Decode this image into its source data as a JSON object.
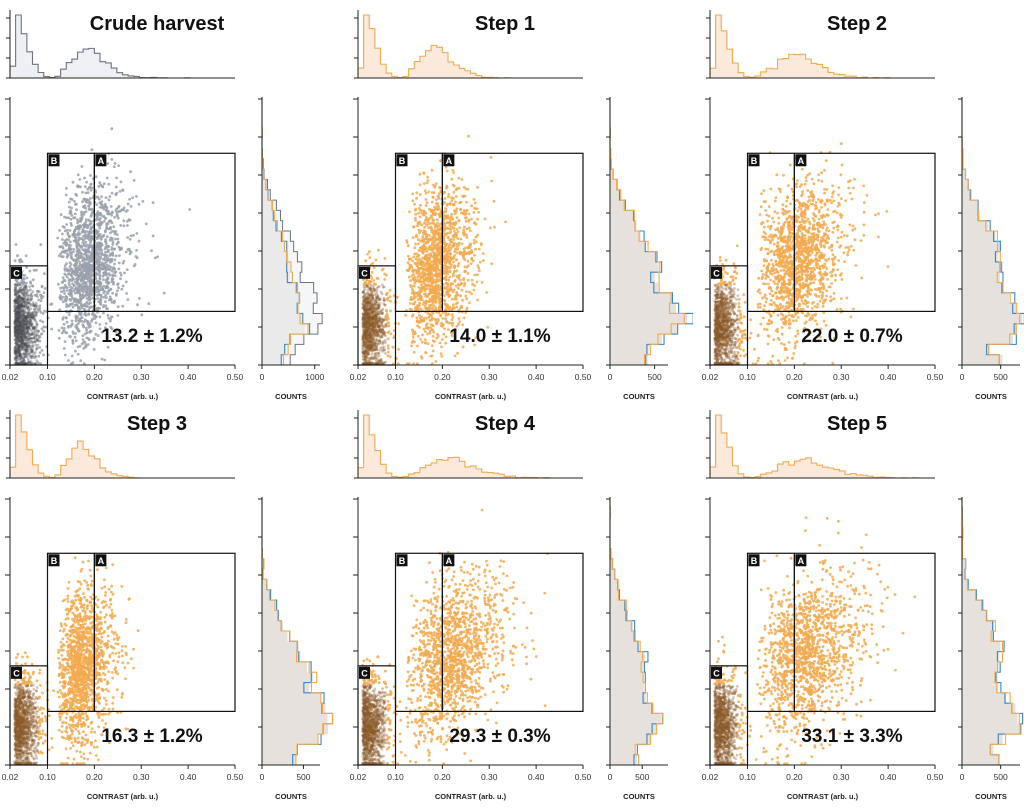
{
  "chart_data": {
    "type": "scatter",
    "description_units": "x = contrast (arb. u.), y = normalized signal (unlabeled axis)",
    "xlabel": "CONTRAST (arb. u.)",
    "counts_label": "COUNTS",
    "xlim": [
      0.02,
      0.5
    ],
    "ylim": [
      0,
      1
    ],
    "x_ticks": [
      "0.02",
      "0.10",
      "0.20",
      "0.30",
      "0.40",
      "0.50"
    ],
    "x_tick_values": [
      0.02,
      0.1,
      0.2,
      0.3,
      0.4,
      0.5
    ],
    "gates": [
      {
        "label": "A",
        "x": [
          0.2,
          0.5
        ],
        "y": [
          0.2,
          0.79
        ]
      },
      {
        "label": "B",
        "x": [
          0.1,
          0.2
        ],
        "y": [
          0.2,
          0.79
        ]
      },
      {
        "label": "C",
        "x": [
          0.02,
          0.1
        ],
        "y": [
          0.0,
          0.37
        ]
      }
    ],
    "colors": {
      "crude": "#9aa1aa",
      "step": "#f2aa50",
      "blue": "#3a86c8",
      "fill": "#e6e1dc",
      "top_fill_crude": "#eef0f3",
      "top_fill_step": "#fbeadb"
    },
    "panels": [
      {
        "title": "Crude harvest",
        "percent": "13.2 ± 1.2%",
        "counts_ticks": [
          "0",
          "1000"
        ],
        "counts_max": 1100,
        "kind": "crude",
        "spread": 0.55
      },
      {
        "title": "Step 1",
        "percent": "14.0 ± 1.1%",
        "counts_ticks": [
          "0",
          "500"
        ],
        "counts_max": 650,
        "kind": "step",
        "spread": 0.55
      },
      {
        "title": "Step 2",
        "percent": "22.0 ± 0.7%",
        "counts_ticks": [
          "0",
          "500"
        ],
        "counts_max": 750,
        "kind": "step",
        "spread": 0.7
      },
      {
        "title": "Step 3",
        "percent": "16.3 ± 1.2%",
        "counts_ticks": [
          "0",
          "500"
        ],
        "counts_max": 700,
        "kind": "step",
        "spread": 0.45
      },
      {
        "title": "Step 4",
        "percent": "29.3 ± 0.3%",
        "counts_ticks": [
          "0",
          "500"
        ],
        "counts_max": 900,
        "kind": "step",
        "spread": 0.8
      },
      {
        "title": "Step 5",
        "percent": "33.1 ± 3.3%",
        "counts_ticks": [
          "0",
          "500"
        ],
        "counts_max": 750,
        "kind": "step",
        "spread": 0.85
      }
    ]
  }
}
